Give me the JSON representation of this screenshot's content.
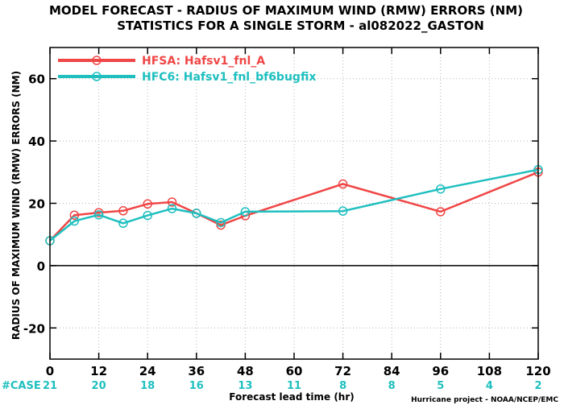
{
  "chart_data": {
    "type": "line",
    "title": "MODEL FORECAST - RADIUS OF MAXIMUM WIND (RMW) ERRORS (NM)",
    "subtitle": "STATISTICS FOR A SINGLE STORM - al082022_GASTON",
    "xlabel": "Forecast lead time (hr)",
    "ylabel": "RADIUS OF MAXIMUM WIND (RMW) ERRORS (NM)",
    "xlim": [
      0,
      120
    ],
    "ylim": [
      -30,
      70
    ],
    "xticks": [
      0,
      12,
      24,
      36,
      48,
      60,
      72,
      84,
      96,
      108,
      120
    ],
    "yticks": [
      -20,
      0,
      20,
      40,
      60
    ],
    "ytick_labels": [
      "-20",
      "0",
      "20",
      "40",
      "60"
    ],
    "grid": true,
    "legend_position": "top-left",
    "series": [
      {
        "name": "HFSA: Hafsv1_fnl_A",
        "color": "#f04646",
        "x": [
          0,
          6,
          12,
          18,
          24,
          30,
          36,
          42,
          48,
          72,
          96,
          120
        ],
        "y": [
          8,
          16.2,
          17,
          17.6,
          19.8,
          20.4,
          16.8,
          13,
          16,
          26.2,
          17.3,
          30
        ]
      },
      {
        "name": "HFC6: Hafsv1_fnl_bf6bugfix",
        "color": "#1fbfbf",
        "x": [
          0,
          6,
          12,
          18,
          24,
          30,
          36,
          42,
          48,
          72,
          96,
          120
        ],
        "y": [
          8,
          14.3,
          16.3,
          13.6,
          16.1,
          18.3,
          16.8,
          13.8,
          17.3,
          17.5,
          24.6,
          30.8
        ]
      }
    ],
    "case_label": "#CASE",
    "case_counts": [
      {
        "x": 0,
        "n": "21"
      },
      {
        "x": 12,
        "n": "20"
      },
      {
        "x": 24,
        "n": "18"
      },
      {
        "x": 36,
        "n": "16"
      },
      {
        "x": 48,
        "n": "13"
      },
      {
        "x": 60,
        "n": "11"
      },
      {
        "x": 72,
        "n": "8"
      },
      {
        "x": 84,
        "n": "8"
      },
      {
        "x": 96,
        "n": "5"
      },
      {
        "x": 108,
        "n": "4"
      },
      {
        "x": 120,
        "n": "2"
      }
    ],
    "credit": "Hurricane project - NOAA/NCEP/EMC"
  }
}
